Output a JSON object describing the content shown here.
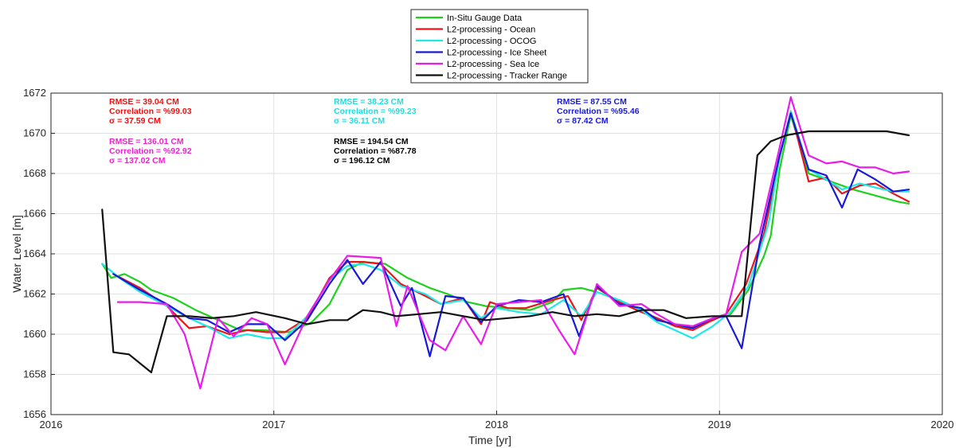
{
  "chart_data": {
    "type": "line",
    "title": "",
    "xlabel": "Time [yr]",
    "ylabel": "Water Level [m]",
    "xlim": [
      2016,
      2020
    ],
    "ylim": [
      1656,
      1672
    ],
    "x_ticks": [
      "2016",
      "2017",
      "2018",
      "2019",
      "2020"
    ],
    "y_ticks": [
      "1656",
      "1658",
      "1660",
      "1662",
      "1664",
      "1666",
      "1668",
      "1670",
      "1672"
    ],
    "grid": true,
    "legend_position": "top-center, above plot",
    "series": [
      {
        "name": "In-Situ Gauge Data",
        "color": "#1fd11f",
        "points": [
          [
            2016.23,
            1663.5
          ],
          [
            2016.27,
            1662.8
          ],
          [
            2016.33,
            1663.0
          ],
          [
            2016.4,
            1662.6
          ],
          [
            2016.45,
            1662.2
          ],
          [
            2016.55,
            1661.8
          ],
          [
            2016.65,
            1661.2
          ],
          [
            2016.75,
            1660.7
          ],
          [
            2016.85,
            1660.2
          ],
          [
            2016.95,
            1660.2
          ],
          [
            2017.07,
            1660.1
          ],
          [
            2017.17,
            1660.6
          ],
          [
            2017.25,
            1661.5
          ],
          [
            2017.33,
            1663.2
          ],
          [
            2017.4,
            1663.6
          ],
          [
            2017.5,
            1663.5
          ],
          [
            2017.6,
            1662.8
          ],
          [
            2017.7,
            1662.3
          ],
          [
            2017.78,
            1662.0
          ],
          [
            2017.87,
            1661.6
          ],
          [
            2017.95,
            1661.4
          ],
          [
            2018.05,
            1661.3
          ],
          [
            2018.15,
            1661.2
          ],
          [
            2018.25,
            1661.6
          ],
          [
            2018.3,
            1662.2
          ],
          [
            2018.38,
            1662.3
          ],
          [
            2018.45,
            1662.1
          ],
          [
            2018.55,
            1661.7
          ],
          [
            2018.63,
            1661.3
          ],
          [
            2018.7,
            1660.9
          ],
          [
            2018.78,
            1660.5
          ],
          [
            2018.87,
            1660.3
          ],
          [
            2018.95,
            1660.7
          ],
          [
            2019.05,
            1661.0
          ],
          [
            2019.13,
            1662.2
          ],
          [
            2019.2,
            1663.9
          ],
          [
            2019.23,
            1664.9
          ],
          [
            2019.27,
            1668.2
          ],
          [
            2019.32,
            1670.9
          ],
          [
            2019.4,
            1668.0
          ],
          [
            2019.5,
            1667.6
          ],
          [
            2019.6,
            1667.2
          ],
          [
            2019.7,
            1666.9
          ],
          [
            2019.8,
            1666.6
          ],
          [
            2019.85,
            1666.5
          ]
        ]
      },
      {
        "name": "L2-processing - Ocean",
        "color": "#e8161b",
        "points": [
          [
            2016.28,
            1663.0
          ],
          [
            2016.4,
            1662.3
          ],
          [
            2016.52,
            1661.4
          ],
          [
            2016.62,
            1660.3
          ],
          [
            2016.7,
            1660.4
          ],
          [
            2016.8,
            1660.0
          ],
          [
            2016.88,
            1660.2
          ],
          [
            2016.97,
            1660.1
          ],
          [
            2017.05,
            1660.1
          ],
          [
            2017.15,
            1660.8
          ],
          [
            2017.25,
            1662.8
          ],
          [
            2017.33,
            1663.6
          ],
          [
            2017.4,
            1663.6
          ],
          [
            2017.48,
            1663.5
          ],
          [
            2017.57,
            1662.5
          ],
          [
            2017.68,
            1661.9
          ],
          [
            2017.75,
            1661.5
          ],
          [
            2017.85,
            1661.8
          ],
          [
            2017.93,
            1660.5
          ],
          [
            2017.97,
            1661.6
          ],
          [
            2018.05,
            1661.3
          ],
          [
            2018.13,
            1661.3
          ],
          [
            2018.25,
            1661.7
          ],
          [
            2018.32,
            1661.9
          ],
          [
            2018.38,
            1660.7
          ],
          [
            2018.45,
            1662.3
          ],
          [
            2018.55,
            1661.6
          ],
          [
            2018.65,
            1661.1
          ],
          [
            2018.72,
            1660.8
          ],
          [
            2018.8,
            1660.4
          ],
          [
            2018.88,
            1660.2
          ],
          [
            2018.95,
            1660.6
          ],
          [
            2019.03,
            1661.0
          ],
          [
            2019.12,
            1662.5
          ],
          [
            2019.2,
            1665.0
          ],
          [
            2019.27,
            1668.8
          ],
          [
            2019.32,
            1671.1
          ],
          [
            2019.4,
            1667.6
          ],
          [
            2019.48,
            1667.8
          ],
          [
            2019.55,
            1667.0
          ],
          [
            2019.63,
            1667.4
          ],
          [
            2019.7,
            1667.5
          ],
          [
            2019.78,
            1667.0
          ],
          [
            2019.85,
            1666.6
          ]
        ]
      },
      {
        "name": "L2-processing - OCOG",
        "color": "#1ee8e8",
        "points": [
          [
            2016.23,
            1663.5
          ],
          [
            2016.32,
            1662.7
          ],
          [
            2016.4,
            1662.1
          ],
          [
            2016.52,
            1661.4
          ],
          [
            2016.62,
            1660.8
          ],
          [
            2016.7,
            1660.4
          ],
          [
            2016.8,
            1659.8
          ],
          [
            2016.88,
            1660.0
          ],
          [
            2016.97,
            1659.8
          ],
          [
            2017.05,
            1659.8
          ],
          [
            2017.15,
            1660.9
          ],
          [
            2017.25,
            1662.7
          ],
          [
            2017.33,
            1663.4
          ],
          [
            2017.4,
            1663.5
          ],
          [
            2017.48,
            1663.2
          ],
          [
            2017.57,
            1662.4
          ],
          [
            2017.68,
            1662.0
          ],
          [
            2017.75,
            1661.5
          ],
          [
            2017.85,
            1661.7
          ],
          [
            2017.93,
            1660.8
          ],
          [
            2018.0,
            1661.3
          ],
          [
            2018.1,
            1661.1
          ],
          [
            2018.2,
            1661.0
          ],
          [
            2018.3,
            1661.7
          ],
          [
            2018.38,
            1660.9
          ],
          [
            2018.45,
            1662.1
          ],
          [
            2018.55,
            1661.7
          ],
          [
            2018.65,
            1661.2
          ],
          [
            2018.72,
            1660.6
          ],
          [
            2018.8,
            1660.2
          ],
          [
            2018.88,
            1659.8
          ],
          [
            2018.97,
            1660.4
          ],
          [
            2019.05,
            1661.1
          ],
          [
            2019.13,
            1662.4
          ],
          [
            2019.22,
            1665.5
          ],
          [
            2019.27,
            1668.8
          ],
          [
            2019.32,
            1671.1
          ],
          [
            2019.4,
            1668.2
          ],
          [
            2019.48,
            1667.7
          ],
          [
            2019.55,
            1667.2
          ],
          [
            2019.63,
            1667.5
          ],
          [
            2019.7,
            1667.3
          ],
          [
            2019.78,
            1667.1
          ],
          [
            2019.85,
            1667.1
          ]
        ]
      },
      {
        "name": "L2-processing - Ice Sheet",
        "color": "#1919d6",
        "points": [
          [
            2016.28,
            1663.0
          ],
          [
            2016.4,
            1662.2
          ],
          [
            2016.52,
            1661.5
          ],
          [
            2016.62,
            1660.8
          ],
          [
            2016.7,
            1660.7
          ],
          [
            2016.8,
            1660.1
          ],
          [
            2016.88,
            1660.5
          ],
          [
            2016.97,
            1660.5
          ],
          [
            2017.05,
            1659.7
          ],
          [
            2017.15,
            1660.7
          ],
          [
            2017.25,
            1662.5
          ],
          [
            2017.33,
            1663.7
          ],
          [
            2017.4,
            1662.5
          ],
          [
            2017.48,
            1663.6
          ],
          [
            2017.57,
            1661.4
          ],
          [
            2017.62,
            1662.3
          ],
          [
            2017.7,
            1658.9
          ],
          [
            2017.77,
            1661.9
          ],
          [
            2017.85,
            1661.8
          ],
          [
            2017.93,
            1660.6
          ],
          [
            2018.0,
            1661.4
          ],
          [
            2018.1,
            1661.7
          ],
          [
            2018.2,
            1661.6
          ],
          [
            2018.3,
            1662.0
          ],
          [
            2018.37,
            1659.9
          ],
          [
            2018.45,
            1662.4
          ],
          [
            2018.55,
            1661.5
          ],
          [
            2018.65,
            1661.3
          ],
          [
            2018.72,
            1660.7
          ],
          [
            2018.8,
            1660.5
          ],
          [
            2018.88,
            1660.3
          ],
          [
            2018.97,
            1660.8
          ],
          [
            2019.03,
            1660.9
          ],
          [
            2019.1,
            1659.3
          ],
          [
            2019.18,
            1664.5
          ],
          [
            2019.27,
            1668.9
          ],
          [
            2019.32,
            1671.0
          ],
          [
            2019.4,
            1668.2
          ],
          [
            2019.48,
            1667.9
          ],
          [
            2019.55,
            1666.3
          ],
          [
            2019.62,
            1668.2
          ],
          [
            2019.7,
            1667.7
          ],
          [
            2019.78,
            1667.1
          ],
          [
            2019.85,
            1667.2
          ]
        ]
      },
      {
        "name": "L2-processing - Sea Ice",
        "color": "#e81de8",
        "points": [
          [
            2016.3,
            1661.6
          ],
          [
            2016.4,
            1661.6
          ],
          [
            2016.52,
            1661.5
          ],
          [
            2016.6,
            1660.0
          ],
          [
            2016.67,
            1657.3
          ],
          [
            2016.75,
            1660.8
          ],
          [
            2016.82,
            1659.9
          ],
          [
            2016.9,
            1660.8
          ],
          [
            2016.97,
            1660.5
          ],
          [
            2017.05,
            1658.5
          ],
          [
            2017.15,
            1660.9
          ],
          [
            2017.25,
            1662.7
          ],
          [
            2017.33,
            1663.9
          ],
          [
            2017.48,
            1663.8
          ],
          [
            2017.55,
            1660.4
          ],
          [
            2017.6,
            1662.4
          ],
          [
            2017.7,
            1659.7
          ],
          [
            2017.77,
            1659.2
          ],
          [
            2017.85,
            1660.9
          ],
          [
            2017.93,
            1659.5
          ],
          [
            2018.0,
            1661.5
          ],
          [
            2018.1,
            1661.6
          ],
          [
            2018.2,
            1661.7
          ],
          [
            2018.28,
            1660.2
          ],
          [
            2018.35,
            1659.0
          ],
          [
            2018.45,
            1662.5
          ],
          [
            2018.55,
            1661.4
          ],
          [
            2018.65,
            1661.5
          ],
          [
            2018.72,
            1661.0
          ],
          [
            2018.8,
            1660.5
          ],
          [
            2018.88,
            1660.4
          ],
          [
            2018.97,
            1660.8
          ],
          [
            2019.03,
            1661.0
          ],
          [
            2019.1,
            1664.1
          ],
          [
            2019.18,
            1665.0
          ],
          [
            2019.27,
            1669.3
          ],
          [
            2019.32,
            1671.8
          ],
          [
            2019.4,
            1668.9
          ],
          [
            2019.48,
            1668.5
          ],
          [
            2019.55,
            1668.6
          ],
          [
            2019.63,
            1668.3
          ],
          [
            2019.7,
            1668.3
          ],
          [
            2019.78,
            1668.0
          ],
          [
            2019.85,
            1668.1
          ]
        ]
      },
      {
        "name": "L2-processing - Tracker Range",
        "color": "#111111",
        "points": [
          [
            2016.23,
            1666.2
          ],
          [
            2016.28,
            1659.1
          ],
          [
            2016.35,
            1659.0
          ],
          [
            2016.45,
            1658.1
          ],
          [
            2016.52,
            1660.9
          ],
          [
            2016.62,
            1660.9
          ],
          [
            2016.72,
            1660.8
          ],
          [
            2016.82,
            1660.9
          ],
          [
            2016.92,
            1661.1
          ],
          [
            2017.05,
            1660.8
          ],
          [
            2017.15,
            1660.5
          ],
          [
            2017.25,
            1660.7
          ],
          [
            2017.33,
            1660.7
          ],
          [
            2017.4,
            1661.2
          ],
          [
            2017.48,
            1661.1
          ],
          [
            2017.55,
            1660.9
          ],
          [
            2017.65,
            1661.0
          ],
          [
            2017.75,
            1661.1
          ],
          [
            2017.85,
            1660.9
          ],
          [
            2017.95,
            1660.7
          ],
          [
            2018.05,
            1660.8
          ],
          [
            2018.15,
            1660.9
          ],
          [
            2018.25,
            1661.1
          ],
          [
            2018.35,
            1660.9
          ],
          [
            2018.45,
            1661.0
          ],
          [
            2018.55,
            1660.9
          ],
          [
            2018.65,
            1661.2
          ],
          [
            2018.75,
            1661.2
          ],
          [
            2018.85,
            1660.8
          ],
          [
            2018.97,
            1660.9
          ],
          [
            2019.1,
            1660.9
          ],
          [
            2019.17,
            1668.9
          ],
          [
            2019.23,
            1669.6
          ],
          [
            2019.3,
            1669.9
          ],
          [
            2019.4,
            1670.1
          ],
          [
            2019.5,
            1670.1
          ],
          [
            2019.6,
            1670.1
          ],
          [
            2019.7,
            1670.1
          ],
          [
            2019.75,
            1670.1
          ],
          [
            2019.8,
            1670.0
          ],
          [
            2019.85,
            1669.9
          ]
        ]
      }
    ],
    "annotations": [
      {
        "group": "ocean",
        "color": "#ee1111",
        "lines": [
          "RMSE = 39.04 CM",
          "Correlation = %99.03",
          "σ = 37.59 CM"
        ]
      },
      {
        "group": "sea-ice",
        "color": "#ee22cc",
        "lines": [
          "RMSE = 136.01 CM",
          "Correlation = %92.92",
          "σ = 137.02 CM"
        ]
      },
      {
        "group": "ocog",
        "color": "#22dddd",
        "lines": [
          "RMSE = 38.23 CM",
          "Correlation = %99.23",
          "σ = 36.11 CM"
        ]
      },
      {
        "group": "tracker-range",
        "color": "#000000",
        "lines": [
          "RMSE = 194.54 CM",
          "Correlation = %87.78",
          "σ = 196.12 CM"
        ]
      },
      {
        "group": "ice-sheet",
        "color": "#1a1ad6",
        "lines": [
          "RMSE = 87.55 CM",
          "Correlation = %95.46",
          "σ = 87.42 CM"
        ]
      }
    ]
  }
}
